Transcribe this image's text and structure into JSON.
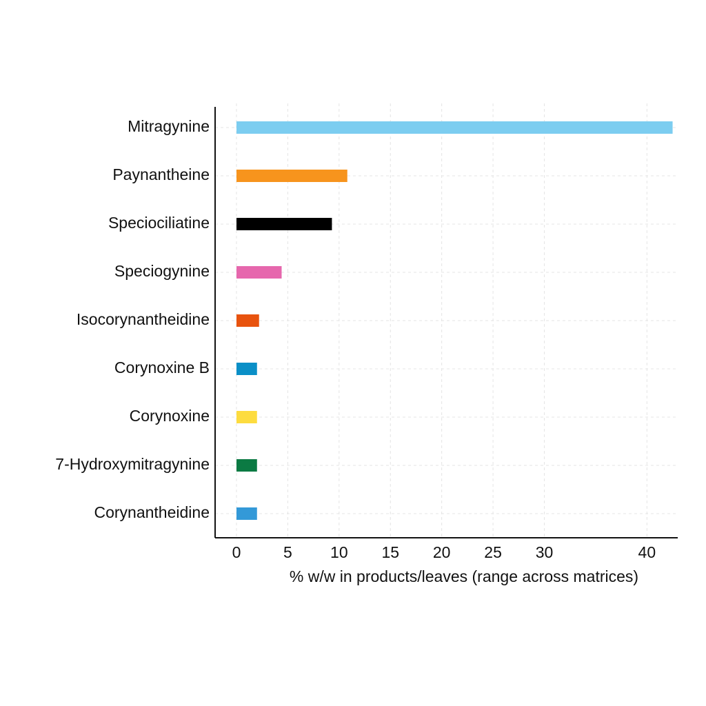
{
  "chart_data": {
    "type": "hbar",
    "xlabel": "% w/w in products/leaves (range across matrices)",
    "categories": [
      "Mitragynine",
      "Paynantheine",
      "Speciociliatine",
      "Speciogynine",
      "Isocorynantheidine",
      "Corynoxine B",
      "Corynoxine",
      "7-Hydroxymitragynine",
      "Corynantheidine"
    ],
    "values": [
      42.5,
      10.8,
      9.3,
      4.4,
      2.2,
      2.0,
      2.0,
      2.0,
      2.0
    ],
    "colors": [
      "#7ccdf0",
      "#f7941d",
      "#000000",
      "#e667ad",
      "#e8530e",
      "#0a8fc7",
      "#fddc3f",
      "#0b7a43",
      "#3399d8"
    ],
    "xlim": [
      0,
      43
    ],
    "xticks": [
      0,
      5,
      10,
      15,
      20,
      25,
      30,
      40
    ],
    "grid": true
  }
}
